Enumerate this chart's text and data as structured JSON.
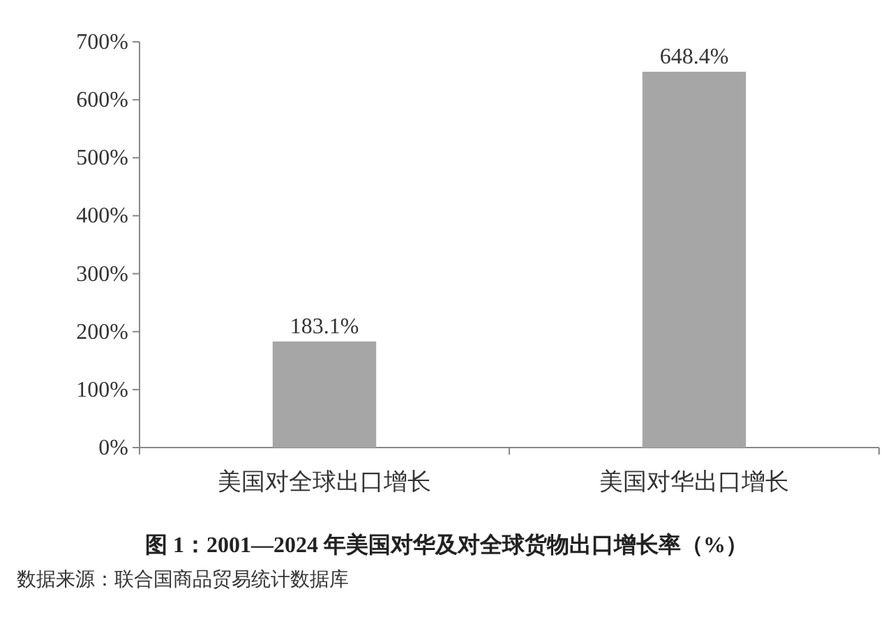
{
  "chart_data": {
    "type": "bar",
    "title": "图 1：2001—2024 年美国对华及对全球货物出口增长率（%）",
    "annotations": [
      "数据来源：联合国商品贸易统计数据库"
    ],
    "categories": [
      "美国对全球出口增长",
      "美国对华出口增长"
    ],
    "values": [
      183.1,
      648.4
    ],
    "value_labels": [
      "183.1%",
      "648.4%"
    ],
    "color": "#a6a6a6",
    "ylim": [
      0,
      700
    ],
    "yticks": [
      {
        "value": 0,
        "label": "0%"
      },
      {
        "value": 100,
        "label": "100%"
      },
      {
        "value": 200,
        "label": "200%"
      },
      {
        "value": 300,
        "label": "300%"
      },
      {
        "value": 400,
        "label": "400%"
      },
      {
        "value": 500,
        "label": "500%"
      },
      {
        "value": 600,
        "label": "600%"
      },
      {
        "value": 700,
        "label": "700%"
      }
    ]
  }
}
